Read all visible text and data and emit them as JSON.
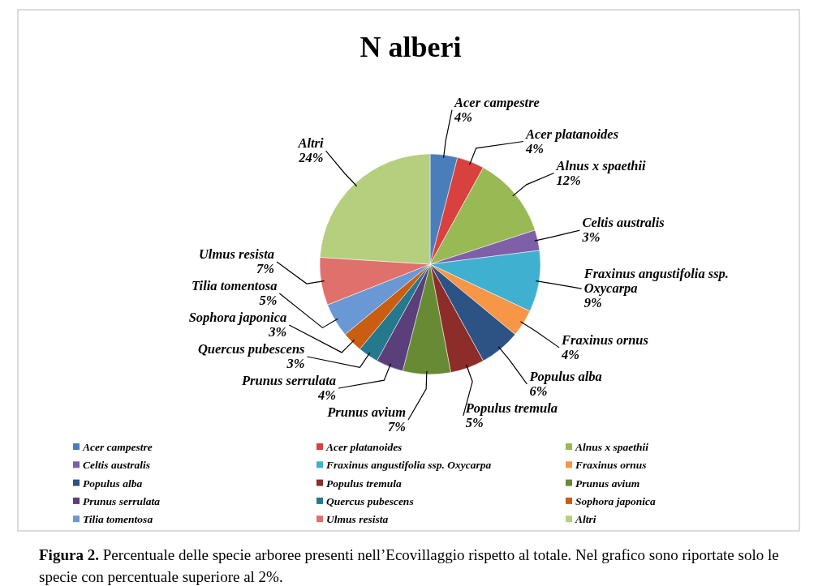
{
  "chart_data": {
    "type": "pie",
    "title": "N alberi",
    "categories": [
      "Acer campestre",
      "Acer platanoides",
      "Alnus x spaethii",
      "Celtis australis",
      "Fraxinus angustifolia ssp. Oxycarpa",
      "Fraxinus ornus",
      "Populus alba",
      "Populus tremula",
      "Prunus avium",
      "Prunus serrulata",
      "Quercus pubescens",
      "Sophora japonica",
      "Tilia tomentosa",
      "Ulmus resista",
      "Altri"
    ],
    "values": [
      4,
      4,
      12,
      3,
      9,
      4,
      6,
      5,
      7,
      4,
      3,
      3,
      5,
      7,
      24
    ],
    "value_labels": [
      "4%",
      "4%",
      "12%",
      "3%",
      "9%",
      "4%",
      "6%",
      "5%",
      "7%",
      "4%",
      "3%",
      "3%",
      "5%",
      "7%",
      "24%"
    ],
    "colors": [
      "#4a7ebb",
      "#d8413e",
      "#98b954",
      "#7f5fa8",
      "#3fb0d0",
      "#f79646",
      "#2d5384",
      "#8c2d2a",
      "#688a35",
      "#5a3f7a",
      "#26788c",
      "#c95d12",
      "#6a98d4",
      "#e0706c",
      "#b5cf7e"
    ],
    "legend": "bottom",
    "annotations": [
      "Figura 2. Percentuale delle specie arboree presenti nell’Ecovillaggio rispetto al totale. Nel grafico sono riportate solo le specie con percentuale superiore al 2%."
    ]
  }
}
